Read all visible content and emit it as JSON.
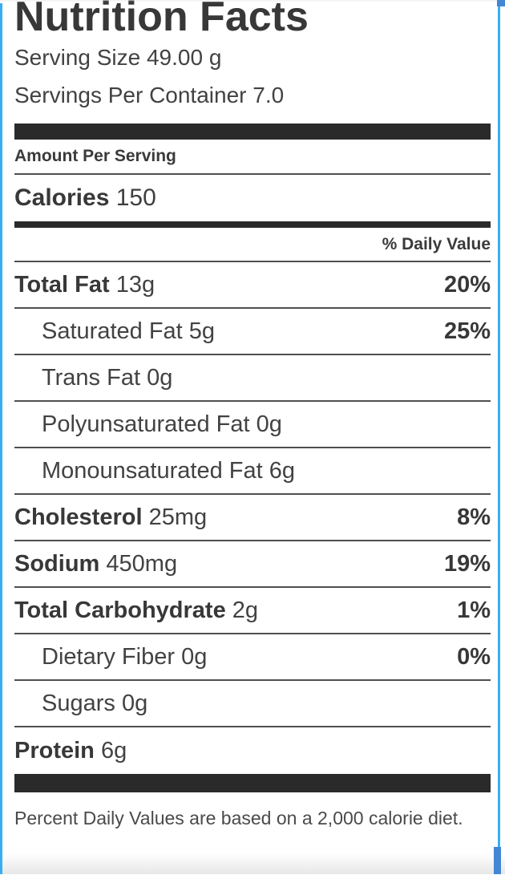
{
  "colors": {
    "text": "#3e3e3e",
    "heavy_bar": "#2a2a2a",
    "rule": "#4f4f4f",
    "viewport_highlight_blue": "#38aef2",
    "scrollbar_blue": "#4187d6"
  },
  "label": {
    "title": "Nutrition Facts",
    "serving_size": "Serving Size 49.00 g",
    "servings_per_container": "Servings Per Container 7.0",
    "amount_per_serving": "Amount Per Serving",
    "calories": {
      "name": "Calories",
      "value": "150"
    },
    "daily_value_header": "% Daily Value",
    "rows": [
      {
        "name": "Total Fat",
        "amount": "13g",
        "dv": "20%"
      },
      {
        "name": "Saturated Fat",
        "amount": "5g",
        "dv": "25%"
      },
      {
        "name": "Trans Fat",
        "amount": "0g",
        "dv": ""
      },
      {
        "name": "Polyunsaturated Fat",
        "amount": "0g",
        "dv": ""
      },
      {
        "name": "Monounsaturated Fat",
        "amount": "6g",
        "dv": ""
      },
      {
        "name": "Cholesterol",
        "amount": "25mg",
        "dv": "8%"
      },
      {
        "name": "Sodium",
        "amount": "450mg",
        "dv": "19%"
      },
      {
        "name": "Total Carbohydrate",
        "amount": "2g",
        "dv": "1%"
      },
      {
        "name": "Dietary Fiber",
        "amount": "0g",
        "dv": "0%"
      },
      {
        "name": "Sugars",
        "amount": "0g",
        "dv": ""
      },
      {
        "name": "Protein",
        "amount": "6g",
        "dv": ""
      }
    ],
    "footnote": "Percent Daily Values are based on a 2,000 calorie diet."
  }
}
